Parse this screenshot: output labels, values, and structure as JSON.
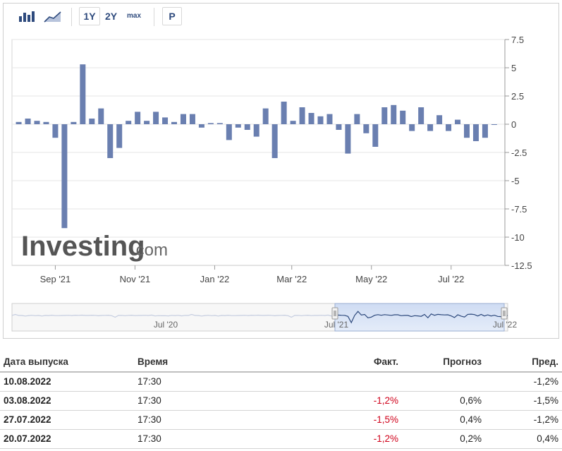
{
  "toolbar": {
    "icons": [
      "bar-chart-icon",
      "area-chart-icon"
    ],
    "ranges": [
      "1Y",
      "2Y",
      "max"
    ],
    "p_label": "P"
  },
  "chart_data": {
    "type": "bar",
    "color": "#6a7fb0",
    "yticks": [
      "7.5",
      "5",
      "2.5",
      "0",
      "-2.5",
      "-5",
      "-7.5",
      "-10",
      "-12.5"
    ],
    "ylim": [
      -12.5,
      7.5
    ],
    "xtick_labels": [
      "Sep '21",
      "Nov '21",
      "Jan '22",
      "Mar '22",
      "May '22",
      "Jul '22"
    ],
    "xtick_positions": [
      "2021-09-01",
      "2021-11-01",
      "2022-01-01",
      "2022-03-01",
      "2022-05-01",
      "2022-07-01"
    ],
    "x": [
      "2021-08-04",
      "2021-08-11",
      "2021-08-18",
      "2021-08-25",
      "2021-09-01",
      "2021-09-08",
      "2021-09-15",
      "2021-09-22",
      "2021-09-29",
      "2021-10-06",
      "2021-10-13",
      "2021-10-20",
      "2021-10-27",
      "2021-11-03",
      "2021-11-10",
      "2021-11-17",
      "2021-11-24",
      "2021-12-01",
      "2021-12-08",
      "2021-12-15",
      "2021-12-22",
      "2021-12-29",
      "2022-01-05",
      "2022-01-12",
      "2022-01-19",
      "2022-01-26",
      "2022-02-02",
      "2022-02-09",
      "2022-02-16",
      "2022-02-23",
      "2022-03-02",
      "2022-03-09",
      "2022-03-16",
      "2022-03-23",
      "2022-03-30",
      "2022-04-06",
      "2022-04-13",
      "2022-04-20",
      "2022-04-27",
      "2022-05-04",
      "2022-05-11",
      "2022-05-18",
      "2022-05-25",
      "2022-06-01",
      "2022-06-08",
      "2022-06-15",
      "2022-06-22",
      "2022-06-29",
      "2022-07-06",
      "2022-07-13",
      "2022-07-20",
      "2022-07-27",
      "2022-08-03"
    ],
    "values": [
      0.2,
      0.5,
      0.3,
      0.2,
      -1.2,
      -9.2,
      0.2,
      5.3,
      0.5,
      1.4,
      -3.0,
      -2.1,
      0.3,
      1.1,
      0.3,
      1.1,
      0.6,
      0.2,
      0.9,
      0.9,
      -0.3,
      0.1,
      0.1,
      -1.4,
      -0.3,
      -0.5,
      -1.1,
      1.4,
      -3.0,
      2.0,
      0.3,
      1.5,
      1.0,
      0.7,
      0.9,
      -0.5,
      -2.6,
      0.9,
      -0.8,
      -2.0,
      1.5,
      1.7,
      1.2,
      -0.6,
      1.5,
      -0.6,
      0.8,
      -0.6,
      0.4,
      -1.2,
      -1.5,
      -1.2,
      0.0
    ],
    "navigator": {
      "labels": [
        "Jul '20",
        "Jul '21",
        "Jul '22"
      ]
    },
    "watermark": {
      "main": "Investing",
      "suffix": ".com"
    }
  },
  "table": {
    "headers": {
      "date": "Дата выпуска",
      "time": "Время",
      "actual": "Факт.",
      "forecast": "Прогноз",
      "previous": "Пред."
    },
    "rows": [
      {
        "date": "10.08.2022",
        "time": "17:30",
        "actual": "",
        "forecast": "",
        "previous": "-1,2%",
        "actual_neg": false
      },
      {
        "date": "03.08.2022",
        "time": "17:30",
        "actual": "-1,2%",
        "forecast": "0,6%",
        "previous": "-1,5%",
        "actual_neg": true
      },
      {
        "date": "27.07.2022",
        "time": "17:30",
        "actual": "-1,5%",
        "forecast": "0,4%",
        "previous": "-1,2%",
        "actual_neg": true
      },
      {
        "date": "20.07.2022",
        "time": "17:30",
        "actual": "-1,2%",
        "forecast": "0,2%",
        "previous": "0,4%",
        "actual_neg": true
      }
    ]
  }
}
